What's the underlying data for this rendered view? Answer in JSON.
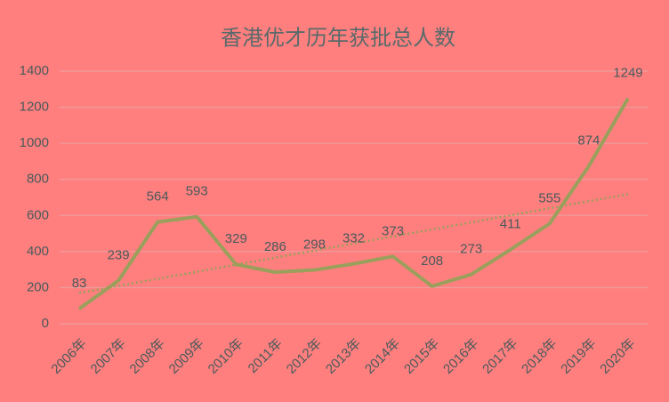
{
  "chart_data": {
    "type": "line",
    "title": "香港优才历年获批总人数",
    "categories": [
      "2006年",
      "2007年",
      "2008年",
      "2009年",
      "2010年",
      "2011年",
      "2012年",
      "2013年",
      "2014年",
      "2015年",
      "2016年",
      "2017年",
      "2018年",
      "2019年",
      "2020年"
    ],
    "values": [
      83,
      239,
      564,
      593,
      329,
      286,
      298,
      332,
      373,
      208,
      273,
      411,
      555,
      874,
      1249
    ],
    "color": "#9a9f5c",
    "ylim": [
      0,
      1400
    ],
    "yticks": [
      0,
      200,
      400,
      600,
      800,
      1000,
      1200,
      1400
    ],
    "grid": true,
    "trendline": "linear"
  }
}
